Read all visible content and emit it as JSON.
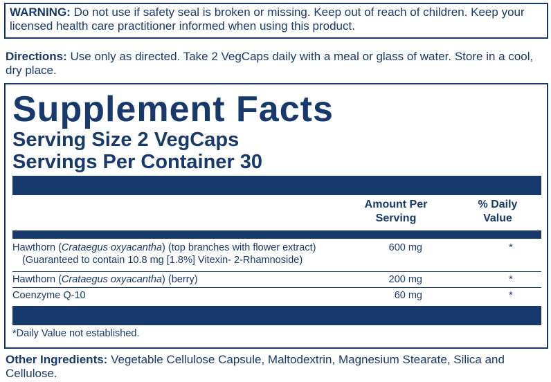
{
  "warning": {
    "label": "WARNING:",
    "text": "Do not use if safety seal is broken or missing. Keep out of reach of children. Keep your licensed health care practitioner informed when using this product."
  },
  "directions": {
    "label": "Directions:",
    "text": "Use only as directed. Take 2 VegCaps daily with a meal or glass of water. Store in a cool, dry place."
  },
  "supplement_facts": {
    "title": "Supplement Facts",
    "serving_size": "Serving Size 2 VegCaps",
    "servings_per_container": "Servings Per Container 30",
    "columns": {
      "amount": "Amount Per Serving",
      "daily_value": "% Daily Value"
    },
    "rows": [
      {
        "name": [
          "Hawthorn (",
          "Crataegus oxyacantha",
          ") (top branches with flower extract)"
        ],
        "detail": "(Guaranteed to contain 10.8 mg [1.8%] Vitexin- 2-Rhamnoside)",
        "amount": "600 mg",
        "daily_value": "*"
      },
      {
        "name": [
          "Hawthorn (",
          "Crataegus oxyacantha",
          ") (berry)"
        ],
        "amount": "200 mg",
        "daily_value": "*"
      },
      {
        "name": [
          "Coenzyme Q-10"
        ],
        "amount": "60 mg",
        "daily_value": "*"
      }
    ],
    "footnote": "*Daily Value not established."
  },
  "other_ingredients": {
    "label": "Other Ingredients:",
    "text": "Vegetable Cellulose Capsule, Maltodextrin, Magnesium Stearate, Silica and Cellulose."
  }
}
